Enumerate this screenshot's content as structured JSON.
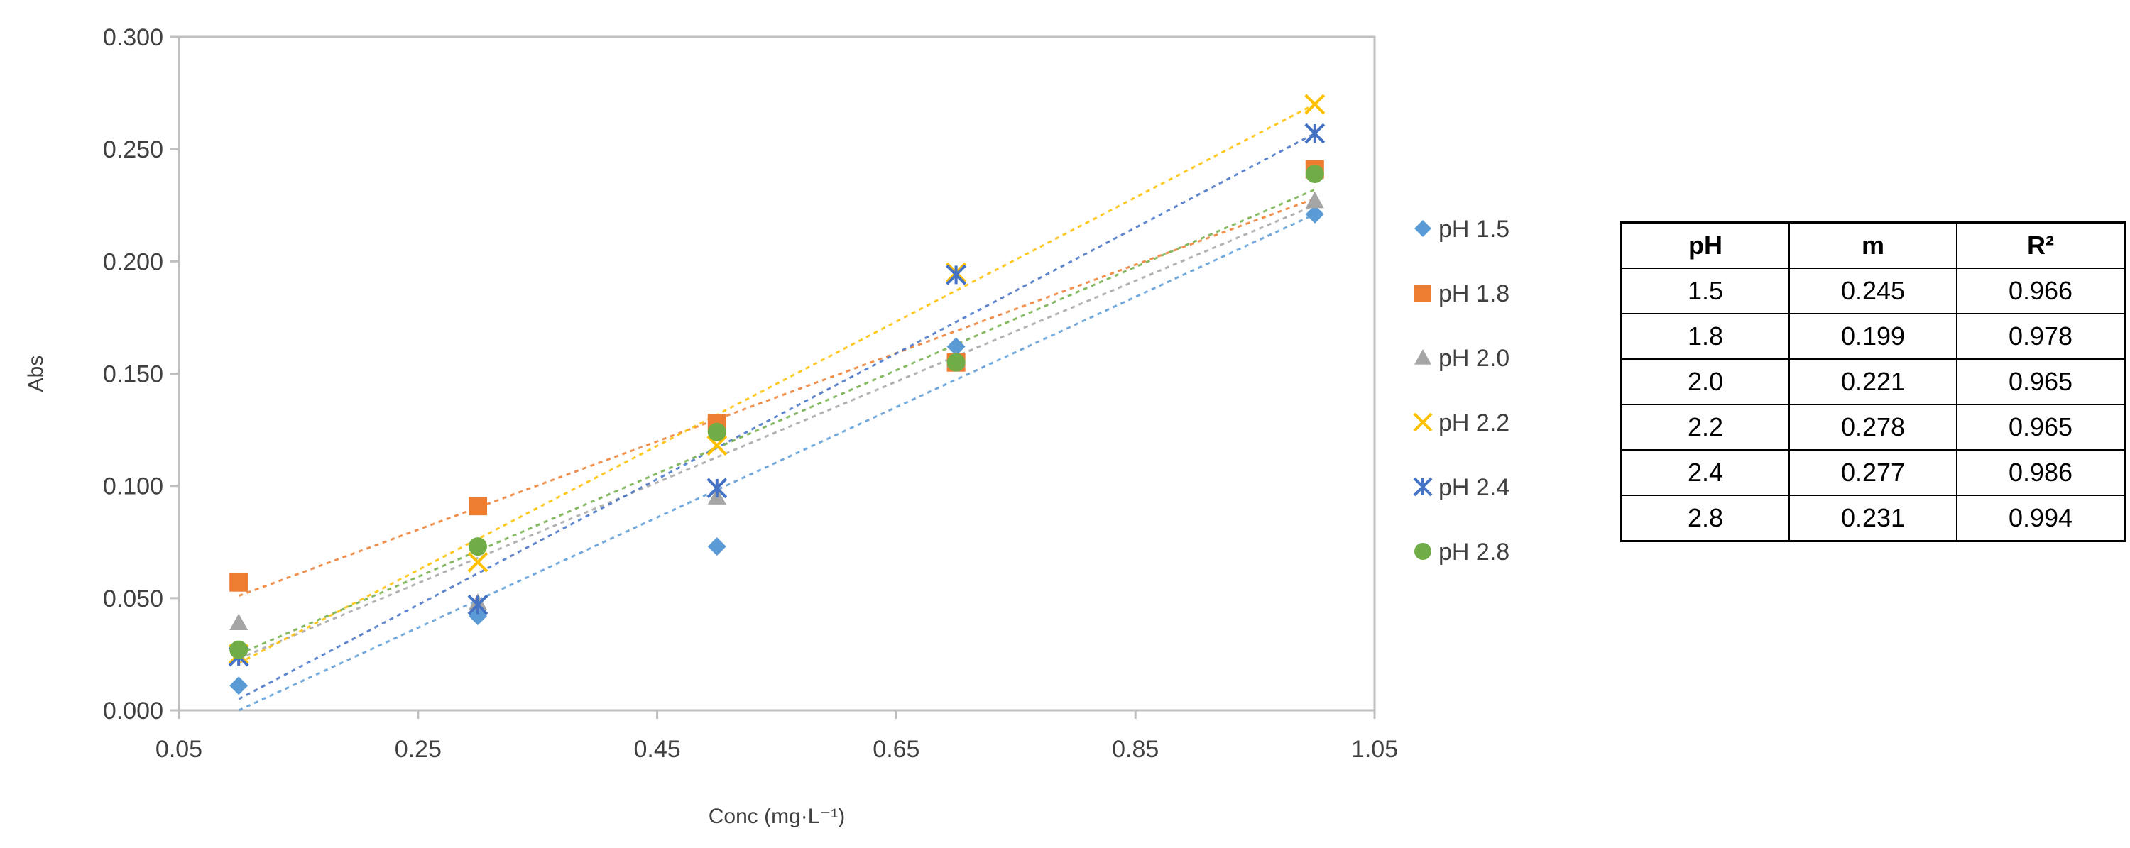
{
  "chart_data": {
    "type": "scatter",
    "title": "",
    "xlabel": "Conc (mg·L⁻¹)",
    "ylabel": "Abs",
    "xlim": [
      0.05,
      1.05
    ],
    "ylim": [
      0,
      0.3
    ],
    "x_ticks": [
      "0.05",
      "0.25",
      "0.45",
      "0.65",
      "0.85",
      "1.05"
    ],
    "y_ticks": [
      "0.000",
      "0.050",
      "0.100",
      "0.150",
      "0.200",
      "0.250",
      "0.300"
    ],
    "x": [
      0.1,
      0.3,
      0.5,
      0.7,
      1.0
    ],
    "series": [
      {
        "name": "pH 1.5",
        "marker": "diamond",
        "color": "#5B9BD5",
        "values": [
          0.011,
          0.042,
          0.073,
          0.162,
          0.221
        ],
        "trend": [
          0.0,
          0.221
        ]
      },
      {
        "name": "pH 1.8",
        "marker": "square",
        "color": "#ED7D31",
        "values": [
          0.057,
          0.091,
          0.128,
          0.155,
          0.241
        ],
        "trend": [
          0.051,
          0.228
        ]
      },
      {
        "name": "pH 2.0",
        "marker": "triangle",
        "color": "#A5A5A5",
        "values": [
          0.039,
          0.048,
          0.095,
          0.156,
          0.227
        ],
        "trend": [
          0.023,
          0.225
        ]
      },
      {
        "name": "pH 2.2",
        "marker": "x",
        "color": "#FFC000",
        "values": [
          0.025,
          0.066,
          0.118,
          0.195,
          0.27
        ],
        "trend": [
          0.021,
          0.27
        ]
      },
      {
        "name": "pH 2.4",
        "marker": "star",
        "color": "#4472C4",
        "values": [
          0.024,
          0.047,
          0.099,
          0.194,
          0.257
        ],
        "trend": [
          0.005,
          0.257
        ]
      },
      {
        "name": "pH 2.8",
        "marker": "circle",
        "color": "#70AD47",
        "values": [
          0.027,
          0.073,
          0.124,
          0.155,
          0.239
        ],
        "trend": [
          0.025,
          0.232
        ]
      }
    ],
    "legend_position": "right",
    "grid": false
  },
  "table": {
    "headers": [
      "pH",
      "m",
      "R²"
    ],
    "rows": [
      [
        "1.5",
        "0.245",
        "0.966"
      ],
      [
        "1.8",
        "0.199",
        "0.978"
      ],
      [
        "2.0",
        "0.221",
        "0.965"
      ],
      [
        "2.2",
        "0.278",
        "0.965"
      ],
      [
        "2.4",
        "0.277",
        "0.986"
      ],
      [
        "2.8",
        "0.231",
        "0.994"
      ]
    ]
  }
}
